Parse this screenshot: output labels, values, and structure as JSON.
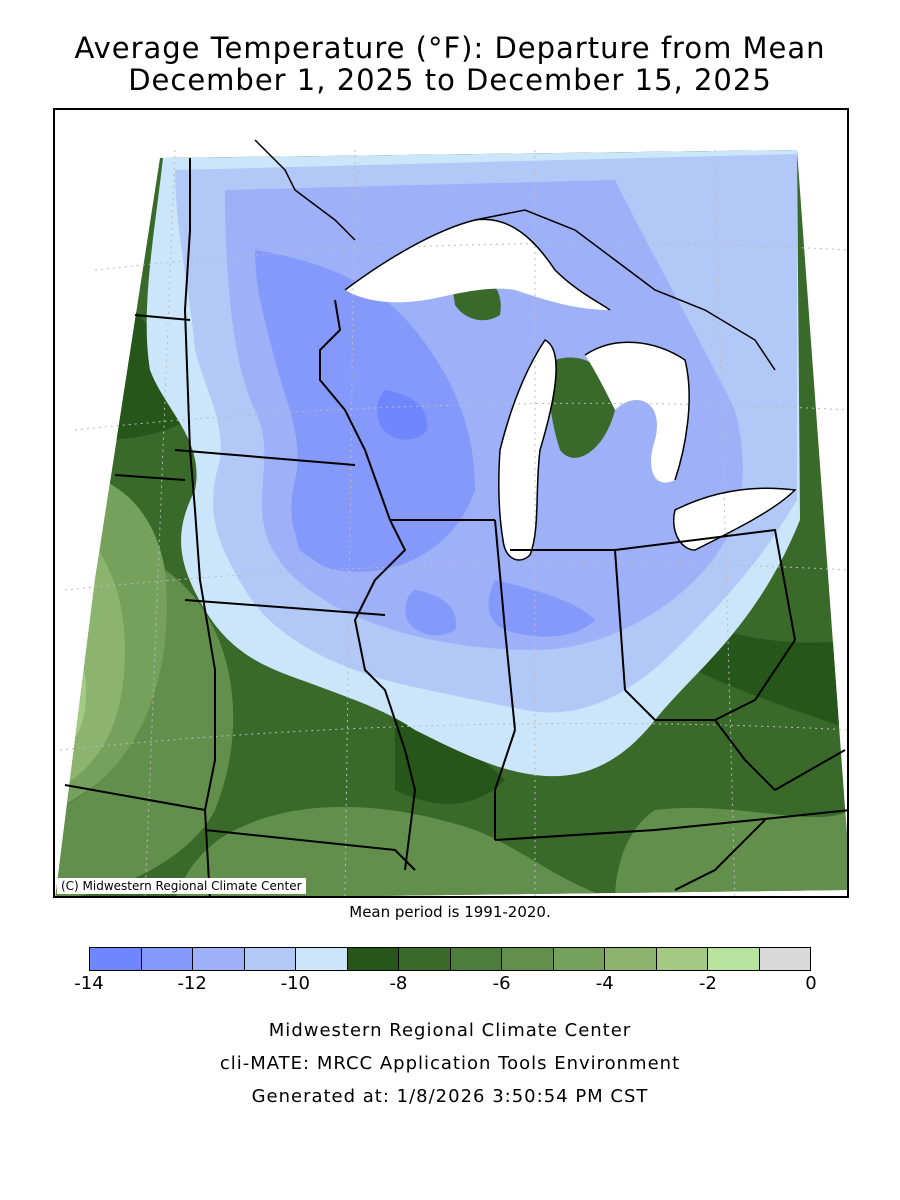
{
  "title_line1": "Average Temperature (°F): Departure from Mean",
  "title_line2": "December 1, 2025 to December 15, 2025",
  "copyright": "(C) Midwestern Regional Climate Center",
  "mean_period": "Mean period is 1991-2020.",
  "legend": {
    "colors": [
      "#6f86ff",
      "#8499fa",
      "#9db0f8",
      "#b2c8f7",
      "#cbe6fb",
      "#26561a",
      "#3a6a2a",
      "#4d7d3a",
      "#628f4c",
      "#76a15d",
      "#8cb46e",
      "#a3c982",
      "#b8e39e",
      "#d9d9d9"
    ],
    "ticks": [
      "-14",
      "-12",
      "-10",
      "-8",
      "-6",
      "-4",
      "-2",
      "0"
    ]
  },
  "map": {
    "type": "contour-map",
    "region": "Midwest United States",
    "variable": "Average temperature departure from mean (°F)"
  },
  "footer": {
    "line1": "Midwestern Regional Climate Center",
    "line2": "cli-MATE: MRCC Application Tools Environment",
    "line3": "Generated at: 1/8/2026 3:50:54 PM CST"
  }
}
